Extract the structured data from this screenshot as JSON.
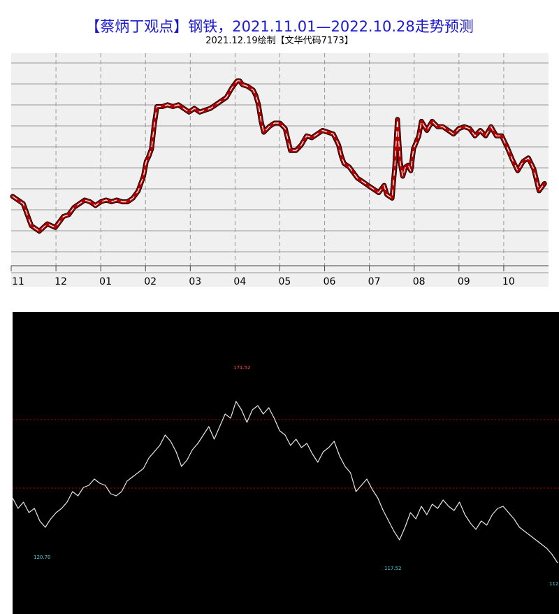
{
  "chart_data": [
    {
      "type": "line",
      "title": "【蔡炳丁观点】钢铁，2021.11.01—2022.10.28走势预测",
      "subtitle": "2021.12.19绘制【文华代码7173】",
      "xlabel": "",
      "ylabel": "",
      "x_tick_labels": [
        "11",
        "12",
        "01",
        "02",
        "03",
        "04",
        "05",
        "06",
        "07",
        "08",
        "09",
        "10"
      ],
      "grid": true,
      "y_axis_labels": "none",
      "colors": {
        "line": "#b00000",
        "dash": "#ffffff",
        "grid": "#999999",
        "background": "#f0f0f0"
      },
      "series": [
        {
          "values": [
            [
              0.0,
              0.69
            ],
            [
              0.02,
              0.73
            ],
            [
              0.035,
              0.85
            ],
            [
              0.05,
              0.88
            ],
            [
              0.065,
              0.84
            ],
            [
              0.08,
              0.86
            ],
            [
              0.095,
              0.8
            ],
            [
              0.105,
              0.79
            ],
            [
              0.115,
              0.75
            ],
            [
              0.125,
              0.73
            ],
            [
              0.135,
              0.71
            ],
            [
              0.145,
              0.72
            ],
            [
              0.155,
              0.74
            ],
            [
              0.165,
              0.72
            ],
            [
              0.175,
              0.71
            ],
            [
              0.185,
              0.72
            ],
            [
              0.195,
              0.71
            ],
            [
              0.205,
              0.72
            ],
            [
              0.215,
              0.72
            ],
            [
              0.225,
              0.7
            ],
            [
              0.235,
              0.66
            ],
            [
              0.245,
              0.58
            ],
            [
              0.25,
              0.5
            ],
            [
              0.255,
              0.47
            ],
            [
              0.26,
              0.43
            ],
            [
              0.265,
              0.3
            ],
            [
              0.27,
              0.2
            ],
            [
              0.28,
              0.2
            ],
            [
              0.29,
              0.19
            ],
            [
              0.3,
              0.2
            ],
            [
              0.31,
              0.19
            ],
            [
              0.32,
              0.21
            ],
            [
              0.33,
              0.23
            ],
            [
              0.34,
              0.21
            ],
            [
              0.35,
              0.23
            ],
            [
              0.36,
              0.22
            ],
            [
              0.37,
              0.21
            ],
            [
              0.38,
              0.19
            ],
            [
              0.39,
              0.17
            ],
            [
              0.4,
              0.15
            ],
            [
              0.41,
              0.1
            ],
            [
              0.42,
              0.06
            ],
            [
              0.425,
              0.06
            ],
            [
              0.43,
              0.08
            ],
            [
              0.44,
              0.09
            ],
            [
              0.45,
              0.11
            ],
            [
              0.455,
              0.14
            ],
            [
              0.46,
              0.19
            ],
            [
              0.465,
              0.28
            ],
            [
              0.47,
              0.34
            ],
            [
              0.48,
              0.31
            ],
            [
              0.49,
              0.29
            ],
            [
              0.5,
              0.29
            ],
            [
              0.51,
              0.32
            ],
            [
              0.52,
              0.44
            ],
            [
              0.53,
              0.44
            ],
            [
              0.54,
              0.41
            ],
            [
              0.55,
              0.36
            ],
            [
              0.56,
              0.37
            ],
            [
              0.57,
              0.35
            ],
            [
              0.58,
              0.33
            ],
            [
              0.6,
              0.35
            ],
            [
              0.61,
              0.41
            ],
            [
              0.615,
              0.47
            ],
            [
              0.62,
              0.51
            ],
            [
              0.63,
              0.53
            ],
            [
              0.645,
              0.59
            ],
            [
              0.655,
              0.61
            ],
            [
              0.665,
              0.63
            ],
            [
              0.675,
              0.65
            ],
            [
              0.685,
              0.67
            ],
            [
              0.695,
              0.63
            ],
            [
              0.7,
              0.68
            ],
            [
              0.71,
              0.7
            ],
            [
              0.715,
              0.53
            ],
            [
              0.72,
              0.27
            ],
            [
              0.725,
              0.5
            ],
            [
              0.73,
              0.58
            ],
            [
              0.735,
              0.53
            ],
            [
              0.74,
              0.52
            ],
            [
              0.745,
              0.55
            ],
            [
              0.75,
              0.43
            ],
            [
              0.76,
              0.36
            ],
            [
              0.765,
              0.28
            ],
            [
              0.775,
              0.33
            ],
            [
              0.785,
              0.28
            ],
            [
              0.795,
              0.31
            ],
            [
              0.805,
              0.31
            ],
            [
              0.815,
              0.33
            ],
            [
              0.825,
              0.35
            ],
            [
              0.835,
              0.32
            ],
            [
              0.845,
              0.31
            ],
            [
              0.855,
              0.32
            ],
            [
              0.865,
              0.36
            ],
            [
              0.875,
              0.33
            ],
            [
              0.885,
              0.36
            ],
            [
              0.895,
              0.31
            ],
            [
              0.905,
              0.36
            ],
            [
              0.915,
              0.36
            ],
            [
              0.925,
              0.42
            ],
            [
              0.935,
              0.49
            ],
            [
              0.945,
              0.55
            ],
            [
              0.955,
              0.5
            ],
            [
              0.965,
              0.48
            ],
            [
              0.975,
              0.54
            ],
            [
              0.985,
              0.66
            ],
            [
              0.995,
              0.62
            ]
          ]
        }
      ]
    },
    {
      "type": "line",
      "title": "",
      "xlabel": "",
      "ylabel": "",
      "grid": "horizontal-dotted-red",
      "colors": {
        "background": "#000000",
        "line": "#e6e6e6",
        "grid": "#c00000",
        "high_label": "#ff4a4a",
        "low_label": "#49d9e6"
      },
      "annotations": [
        "174.52",
        "120.70",
        "117.52",
        "112"
      ],
      "series": [
        {
          "values": [
            [
              0.0,
              0.58
            ],
            [
              0.01,
              0.63
            ],
            [
              0.02,
              0.6
            ],
            [
              0.03,
              0.65
            ],
            [
              0.04,
              0.63
            ],
            [
              0.05,
              0.69
            ],
            [
              0.06,
              0.72
            ],
            [
              0.07,
              0.68
            ],
            [
              0.08,
              0.65
            ],
            [
              0.09,
              0.63
            ],
            [
              0.1,
              0.6
            ],
            [
              0.11,
              0.55
            ],
            [
              0.12,
              0.57
            ],
            [
              0.13,
              0.53
            ],
            [
              0.14,
              0.52
            ],
            [
              0.15,
              0.49
            ],
            [
              0.16,
              0.51
            ],
            [
              0.17,
              0.52
            ],
            [
              0.18,
              0.56
            ],
            [
              0.19,
              0.57
            ],
            [
              0.2,
              0.55
            ],
            [
              0.21,
              0.5
            ],
            [
              0.22,
              0.48
            ],
            [
              0.23,
              0.46
            ],
            [
              0.24,
              0.44
            ],
            [
              0.25,
              0.39
            ],
            [
              0.26,
              0.36
            ],
            [
              0.27,
              0.33
            ],
            [
              0.28,
              0.28
            ],
            [
              0.29,
              0.31
            ],
            [
              0.3,
              0.36
            ],
            [
              0.31,
              0.43
            ],
            [
              0.32,
              0.4
            ],
            [
              0.33,
              0.35
            ],
            [
              0.34,
              0.32
            ],
            [
              0.35,
              0.28
            ],
            [
              0.36,
              0.24
            ],
            [
              0.37,
              0.3
            ],
            [
              0.38,
              0.24
            ],
            [
              0.39,
              0.18
            ],
            [
              0.4,
              0.2
            ],
            [
              0.41,
              0.12
            ],
            [
              0.42,
              0.16
            ],
            [
              0.43,
              0.22
            ],
            [
              0.44,
              0.16
            ],
            [
              0.45,
              0.14
            ],
            [
              0.46,
              0.18
            ],
            [
              0.47,
              0.15
            ],
            [
              0.48,
              0.2
            ],
            [
              0.49,
              0.26
            ],
            [
              0.5,
              0.28
            ],
            [
              0.51,
              0.33
            ],
            [
              0.52,
              0.3
            ],
            [
              0.53,
              0.34
            ],
            [
              0.54,
              0.32
            ],
            [
              0.55,
              0.37
            ],
            [
              0.56,
              0.41
            ],
            [
              0.57,
              0.36
            ],
            [
              0.58,
              0.34
            ],
            [
              0.59,
              0.31
            ],
            [
              0.6,
              0.38
            ],
            [
              0.61,
              0.43
            ],
            [
              0.62,
              0.46
            ],
            [
              0.63,
              0.55
            ],
            [
              0.64,
              0.52
            ],
            [
              0.65,
              0.49
            ],
            [
              0.66,
              0.54
            ],
            [
              0.67,
              0.58
            ],
            [
              0.68,
              0.64
            ],
            [
              0.69,
              0.69
            ],
            [
              0.7,
              0.74
            ],
            [
              0.71,
              0.78
            ],
            [
              0.72,
              0.72
            ],
            [
              0.73,
              0.65
            ],
            [
              0.74,
              0.68
            ],
            [
              0.75,
              0.62
            ],
            [
              0.76,
              0.66
            ],
            [
              0.77,
              0.61
            ],
            [
              0.78,
              0.63
            ],
            [
              0.79,
              0.59
            ],
            [
              0.8,
              0.62
            ],
            [
              0.81,
              0.64
            ],
            [
              0.82,
              0.6
            ],
            [
              0.83,
              0.66
            ],
            [
              0.84,
              0.7
            ],
            [
              0.85,
              0.73
            ],
            [
              0.86,
              0.69
            ],
            [
              0.87,
              0.71
            ],
            [
              0.88,
              0.66
            ],
            [
              0.89,
              0.63
            ],
            [
              0.9,
              0.62
            ],
            [
              0.91,
              0.65
            ],
            [
              0.92,
              0.68
            ],
            [
              0.93,
              0.72
            ],
            [
              0.94,
              0.74
            ],
            [
              0.95,
              0.76
            ],
            [
              0.96,
              0.78
            ],
            [
              0.97,
              0.8
            ],
            [
              0.98,
              0.82
            ],
            [
              0.99,
              0.85
            ],
            [
              1.0,
              0.89
            ]
          ]
        }
      ]
    }
  ]
}
